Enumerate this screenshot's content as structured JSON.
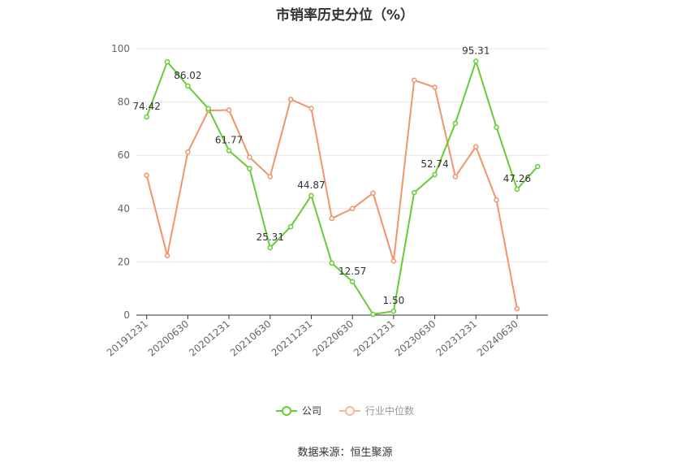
{
  "chart_data": {
    "type": "line",
    "title": "市销率历史分位（%）",
    "x": [
      "20191231",
      "20200331",
      "20200630",
      "20200930",
      "20201231",
      "20210331",
      "20210630",
      "20210930",
      "20211231",
      "20220331",
      "20220630",
      "20220930",
      "20221231",
      "20230331",
      "20230630",
      "20230930",
      "20231231",
      "20240331",
      "20240630",
      "20240930"
    ],
    "xticks": [
      "20191231",
      "20200630",
      "20201231",
      "20210630",
      "20211231",
      "20220630",
      "20221231",
      "20230630",
      "20231231",
      "20240630"
    ],
    "ylim": [
      0,
      100
    ],
    "yticks": [
      0,
      20,
      40,
      60,
      80,
      100
    ],
    "grid": true,
    "legend_position": "bottom-center",
    "series": [
      {
        "name": "公司",
        "color": "#66cc33",
        "values": [
          74.42,
          95.1,
          86.02,
          77.5,
          61.77,
          55.0,
          25.31,
          33.2,
          44.87,
          19.5,
          12.57,
          0.3,
          1.5,
          46.0,
          52.74,
          72.0,
          95.31,
          70.5,
          47.26,
          55.8
        ],
        "labels": [
          "74.42",
          "",
          "86.02",
          "",
          "61.77",
          "",
          "25.31",
          "",
          "44.87",
          "",
          "12.57",
          "",
          "1.50",
          "",
          "52.74",
          "",
          "95.31",
          "",
          "47.26",
          ""
        ]
      },
      {
        "name": "行业中位数",
        "color": "#f0946a",
        "values": [
          52.5,
          22.3,
          61.2,
          76.8,
          77.0,
          59.3,
          52.0,
          81.0,
          77.6,
          36.3,
          40.0,
          45.8,
          20.3,
          88.2,
          85.5,
          52.0,
          63.2,
          43.2,
          2.4,
          null
        ]
      }
    ]
  },
  "footer": {
    "source": "数据来源：恒生聚源"
  }
}
